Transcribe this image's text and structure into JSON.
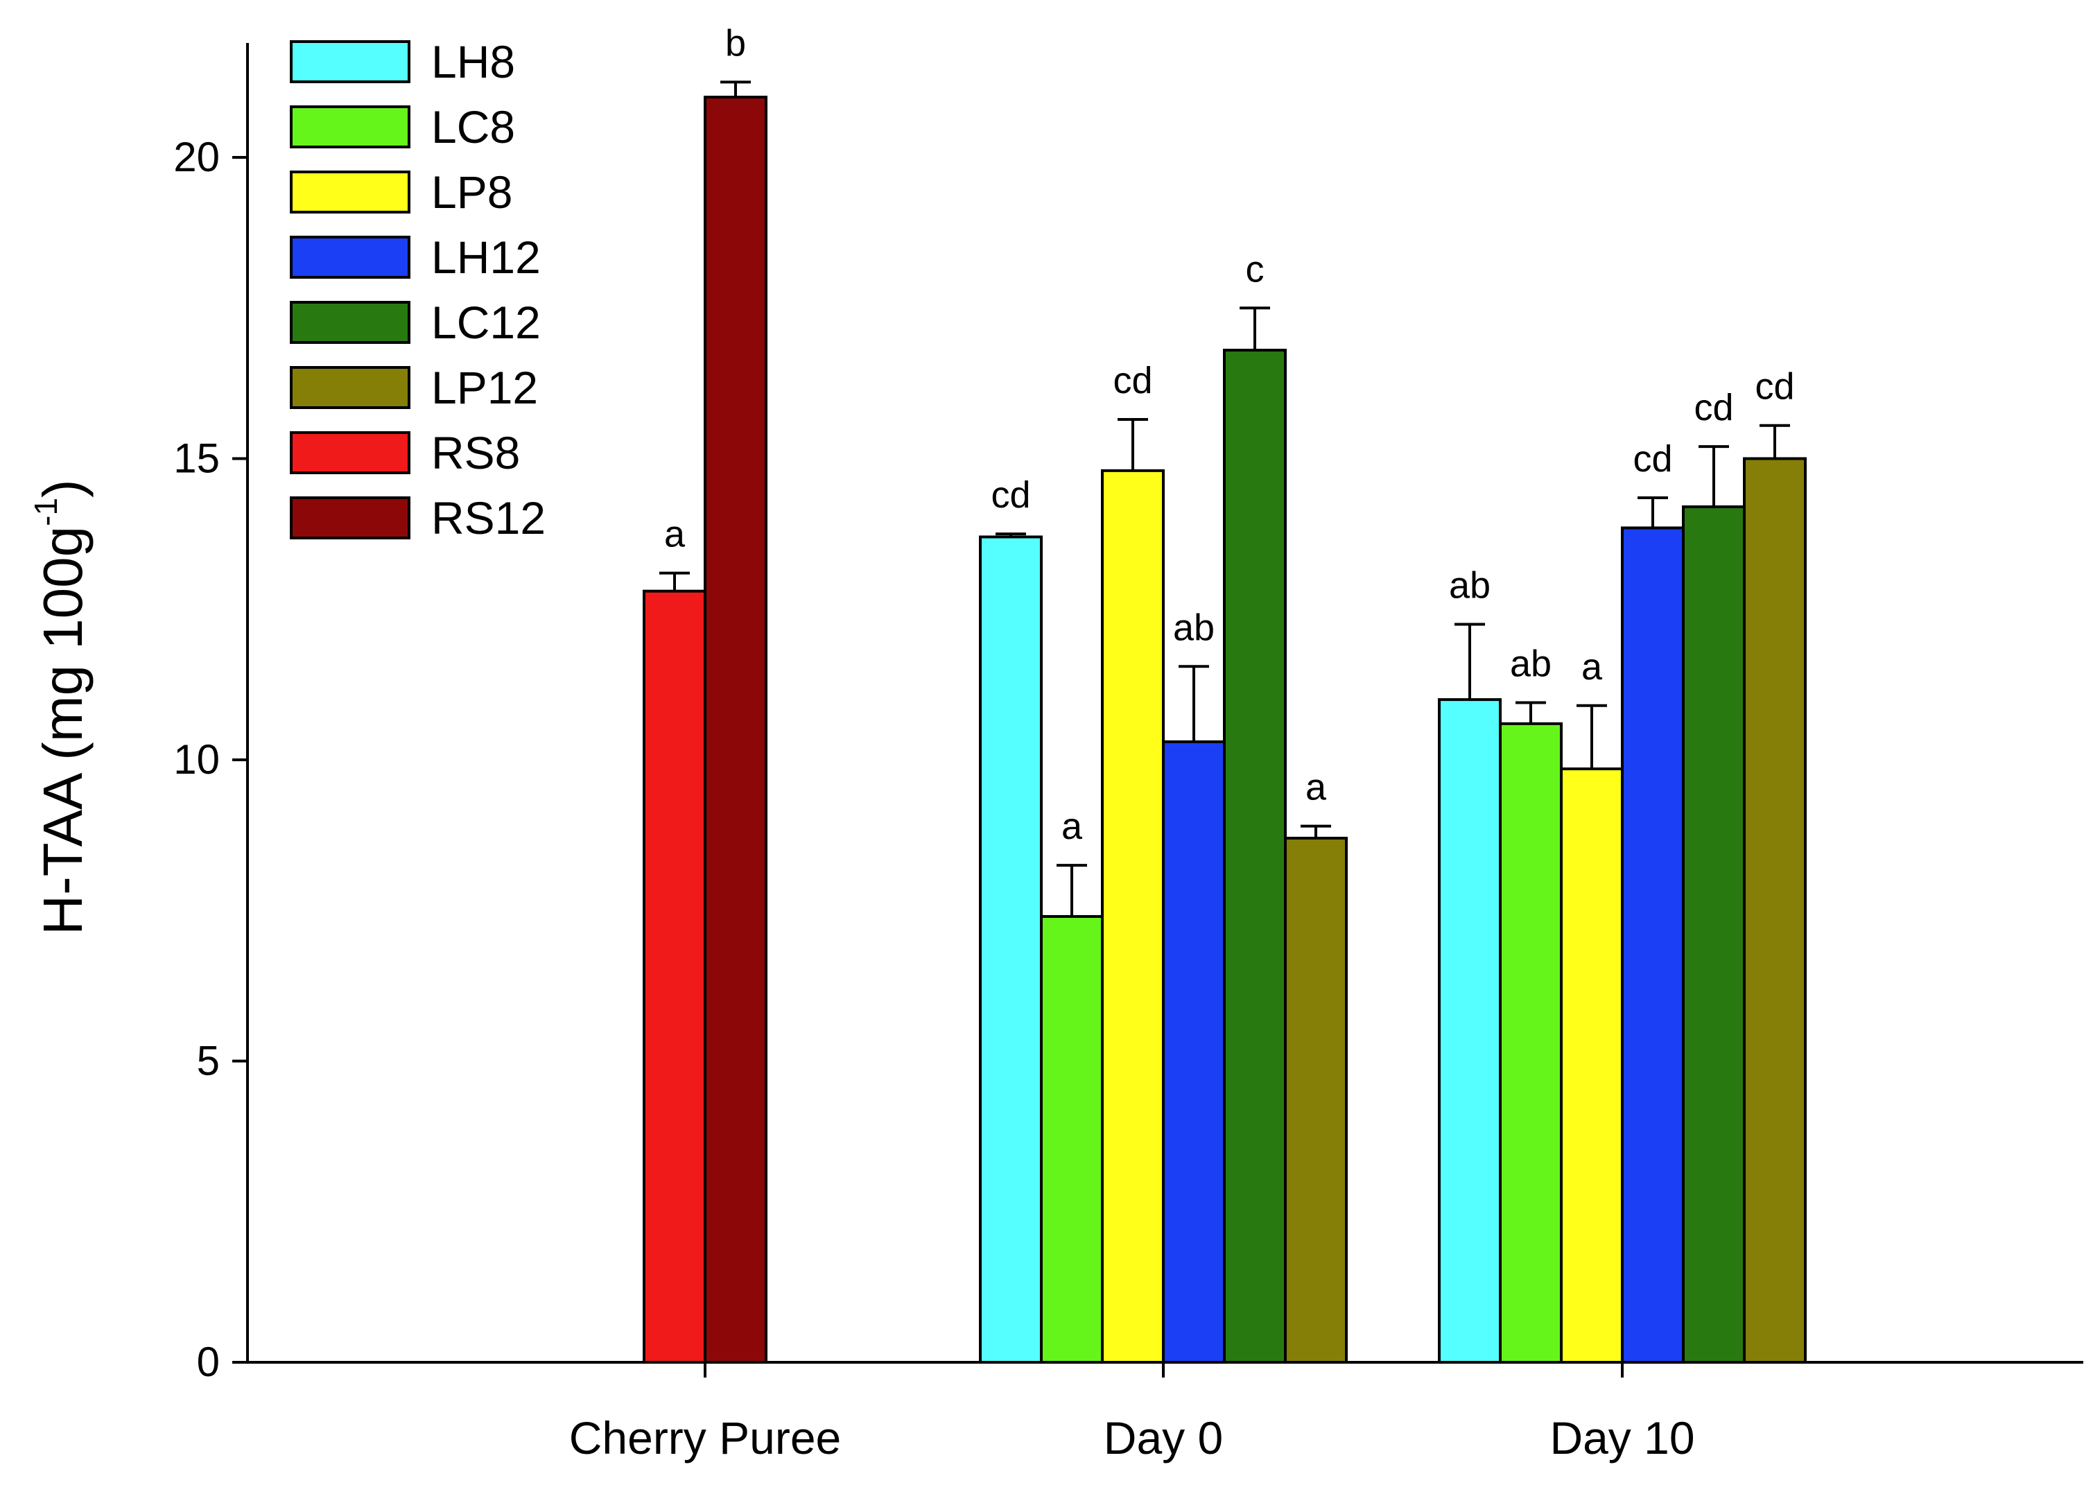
{
  "chart_data": {
    "type": "bar",
    "title": "",
    "xlabel": "",
    "ylabel_main": "H-TAA (mg 100g",
    "ylabel_exponent": "-1",
    "ylabel_close": ")",
    "ylim": [
      0,
      22
    ],
    "yticks": [
      0,
      5,
      10,
      15,
      20
    ],
    "ytick_labels": [
      "0",
      "5",
      "10",
      "15",
      "20"
    ],
    "legend_position": "top-left",
    "series": [
      {
        "name": "LH8",
        "color": "#55FFFF"
      },
      {
        "name": "LC8",
        "color": "#66F51A"
      },
      {
        "name": "LP8",
        "color": "#FFFF1A"
      },
      {
        "name": "LH12",
        "color": "#1A3FF5"
      },
      {
        "name": "LC12",
        "color": "#287A10"
      },
      {
        "name": "LP12",
        "color": "#857F08"
      },
      {
        "name": "RS8",
        "color": "#F01A1A"
      },
      {
        "name": "RS12",
        "color": "#8C0808"
      }
    ],
    "groups": [
      {
        "category": "Cherry Puree",
        "bars": [
          {
            "series": "RS8",
            "value": 12.8,
            "error": 0.3,
            "label": "a"
          },
          {
            "series": "RS12",
            "value": 21.0,
            "error": 0.25,
            "label": "b"
          }
        ]
      },
      {
        "category": "Day 0",
        "bars": [
          {
            "series": "LH8",
            "value": 13.7,
            "error": 0.05,
            "label": "cd"
          },
          {
            "series": "LC8",
            "value": 7.4,
            "error": 0.85,
            "label": "a"
          },
          {
            "series": "LP8",
            "value": 14.8,
            "error": 0.85,
            "label": "cd"
          },
          {
            "series": "LH12",
            "value": 10.3,
            "error": 1.25,
            "label": "ab"
          },
          {
            "series": "LC12",
            "value": 16.8,
            "error": 0.7,
            "label": "c"
          },
          {
            "series": "LP12",
            "value": 8.7,
            "error": 0.2,
            "label": "a"
          }
        ]
      },
      {
        "category": "Day 10",
        "bars": [
          {
            "series": "LH8",
            "value": 11.0,
            "error": 1.25,
            "label": "ab"
          },
          {
            "series": "LC8",
            "value": 10.6,
            "error": 0.35,
            "label": "ab"
          },
          {
            "series": "LP8",
            "value": 9.85,
            "error": 1.05,
            "label": "a"
          },
          {
            "series": "LH12",
            "value": 13.85,
            "error": 0.5,
            "label": "cd"
          },
          {
            "series": "LC12",
            "value": 14.2,
            "error": 1.0,
            "label": "cd"
          },
          {
            "series": "LP12",
            "value": 15.0,
            "error": 0.55,
            "label": "cd"
          }
        ]
      }
    ]
  }
}
